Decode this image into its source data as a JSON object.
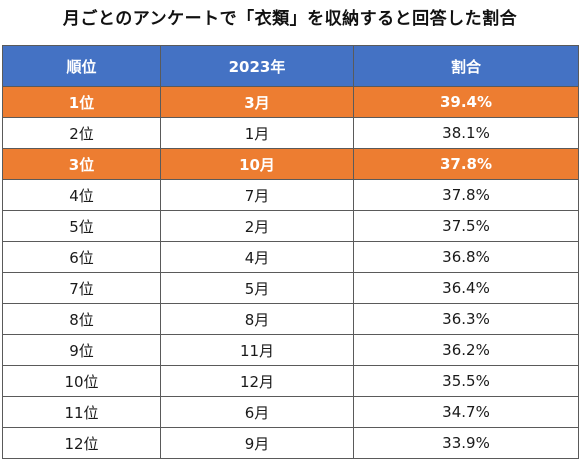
{
  "title": "月ごとのアンケートで「衣類」を収納すると回答した割合",
  "chart_data": {
    "type": "table",
    "columns": [
      "順位",
      "2023年",
      "割合"
    ],
    "rows": [
      {
        "rank": "1位",
        "month": "3月",
        "share": "39.4%",
        "highlight": true
      },
      {
        "rank": "2位",
        "month": "1月",
        "share": "38.1%",
        "highlight": false
      },
      {
        "rank": "3位",
        "month": "10月",
        "share": "37.8%",
        "highlight": true
      },
      {
        "rank": "4位",
        "month": "7月",
        "share": "37.8%",
        "highlight": false
      },
      {
        "rank": "5位",
        "month": "2月",
        "share": "37.5%",
        "highlight": false
      },
      {
        "rank": "6位",
        "month": "4月",
        "share": "36.8%",
        "highlight": false
      },
      {
        "rank": "7位",
        "month": "5月",
        "share": "36.4%",
        "highlight": false
      },
      {
        "rank": "8位",
        "month": "8月",
        "share": "36.3%",
        "highlight": false
      },
      {
        "rank": "9位",
        "month": "11月",
        "share": "36.2%",
        "highlight": false
      },
      {
        "rank": "10位",
        "month": "12月",
        "share": "35.5%",
        "highlight": false
      },
      {
        "rank": "11位",
        "month": "6月",
        "share": "34.7%",
        "highlight": false
      },
      {
        "rank": "12位",
        "month": "9月",
        "share": "33.9%",
        "highlight": false
      }
    ]
  },
  "colors": {
    "header_bg": "#4472c4",
    "highlight_bg": "#ed7d31"
  }
}
